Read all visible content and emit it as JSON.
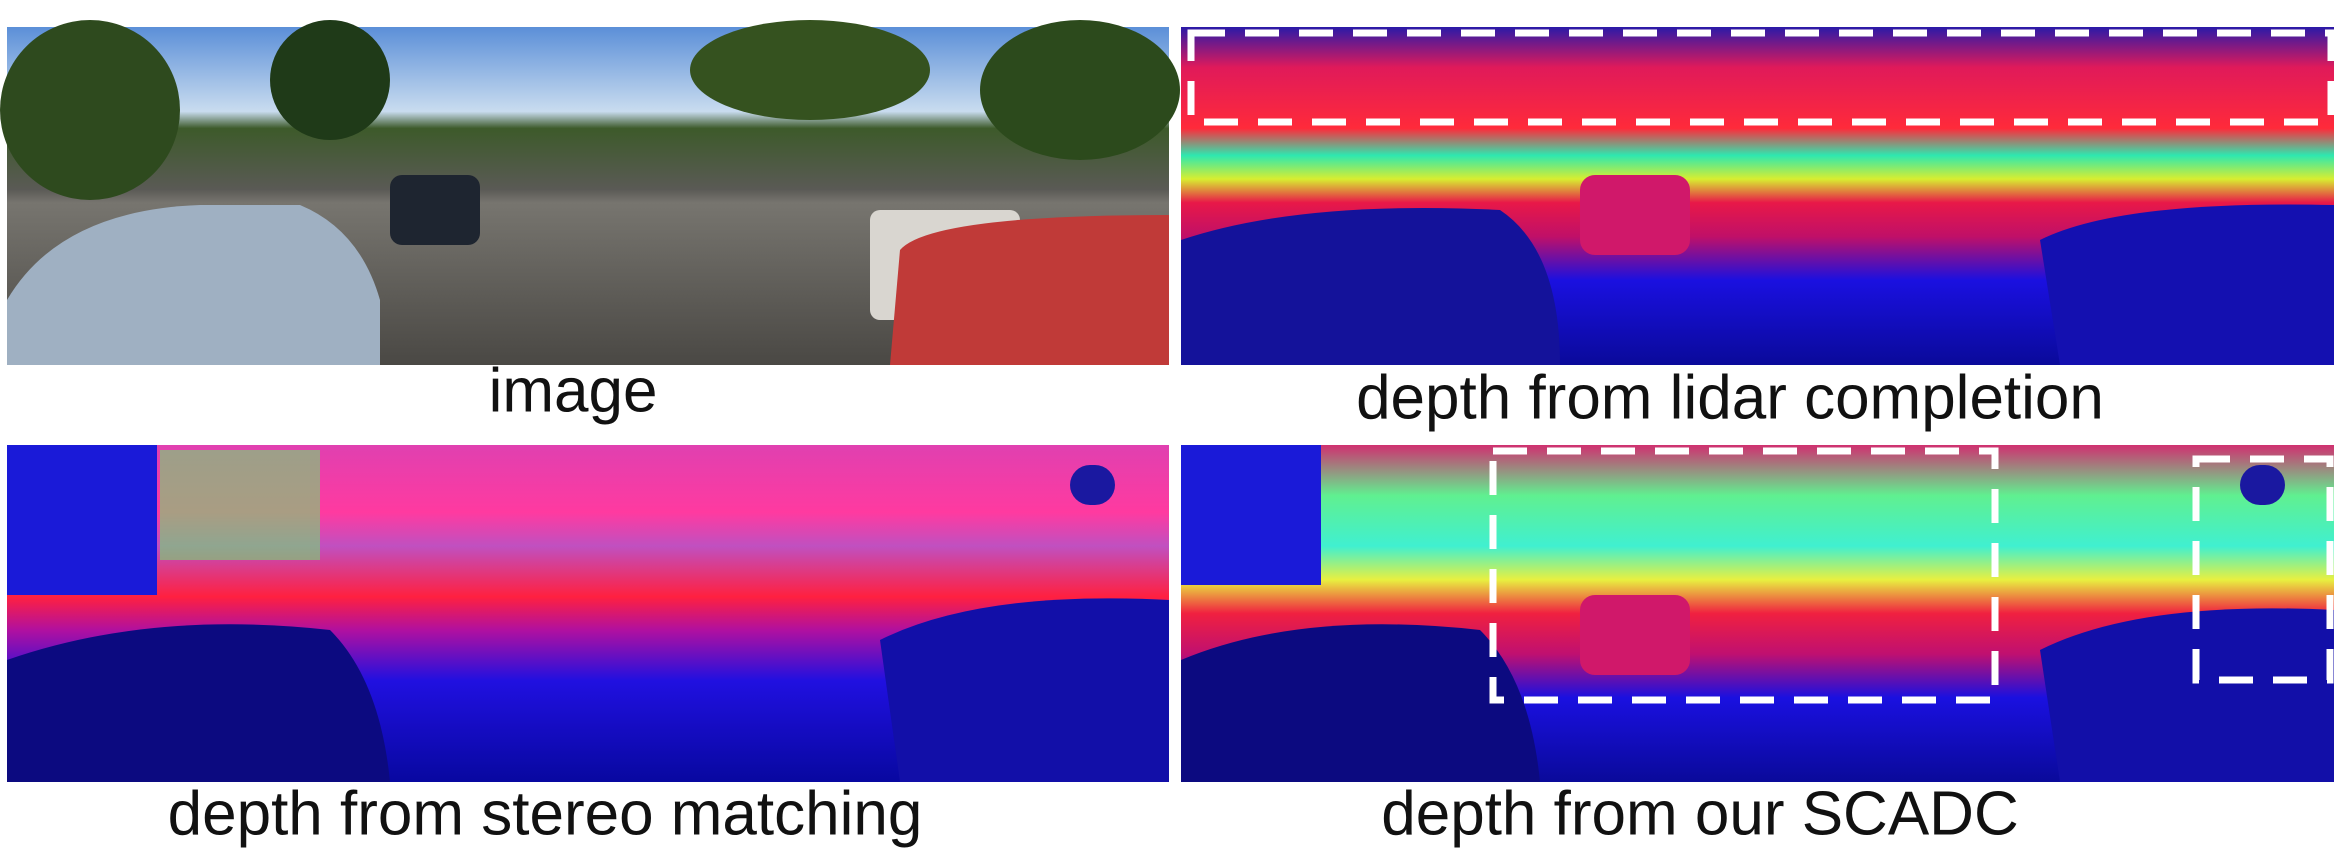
{
  "panels": [
    {
      "caption": "image"
    },
    {
      "caption": "depth from lidar completion"
    },
    {
      "caption": "depth from stereo matching"
    },
    {
      "caption": "depth from our SCADC"
    }
  ]
}
